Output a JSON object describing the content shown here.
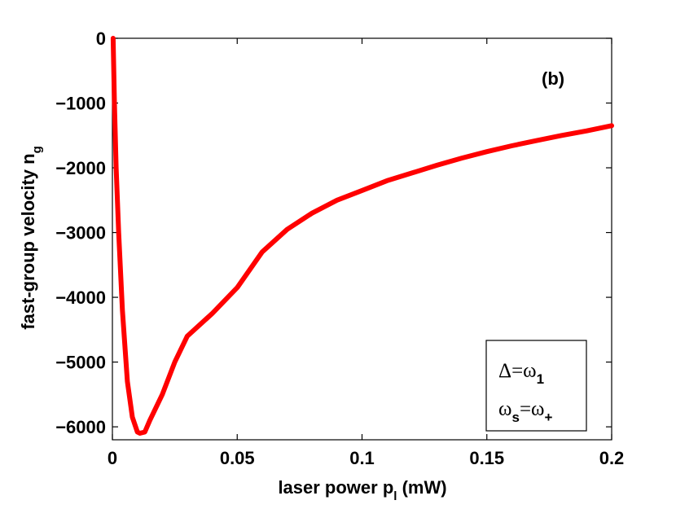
{
  "chart_data": {
    "type": "line",
    "title": "",
    "xlabel": "laser power p",
    "xlabel_sub": "l",
    "xlabel_unit": " (mW)",
    "ylabel": "fast-group velocity n",
    "ylabel_sub": "g",
    "xlim": [
      0,
      0.2
    ],
    "ylim": [
      -6200,
      0
    ],
    "x_ticks": [
      0,
      0.05,
      0.1,
      0.15,
      0.2
    ],
    "x_tick_labels": [
      "0",
      "0.05",
      "0.1",
      "0.15",
      "0.2"
    ],
    "y_ticks": [
      0,
      -1000,
      -2000,
      -3000,
      -4000,
      -5000,
      -6000
    ],
    "y_tick_labels": [
      "0",
      "−1000",
      "−2000",
      "−3000",
      "−4000",
      "−5000",
      "−6000"
    ],
    "grid": false,
    "panel_label": "(b)",
    "series": [
      {
        "color": "#ff0000",
        "x": [
          0.0003,
          0.0008,
          0.0015,
          0.0025,
          0.004,
          0.006,
          0.008,
          0.01,
          0.011,
          0.013,
          0.015,
          0.02,
          0.025,
          0.03,
          0.04,
          0.05,
          0.06,
          0.07,
          0.08,
          0.09,
          0.1,
          0.11,
          0.12,
          0.13,
          0.14,
          0.15,
          0.16,
          0.17,
          0.18,
          0.19,
          0.2
        ],
        "y": [
          0,
          -1000,
          -2000,
          -3000,
          -4200,
          -5300,
          -5850,
          -6080,
          -6100,
          -6080,
          -5900,
          -5500,
          -5000,
          -4600,
          -4250,
          -3850,
          -3300,
          -2950,
          -2700,
          -2500,
          -2350,
          -2200,
          -2080,
          -1960,
          -1850,
          -1750,
          -1660,
          -1580,
          -1500,
          -1430,
          -1350
        ]
      }
    ],
    "legend": {
      "placement": "bottom-right",
      "line1_main": "Δ=ω",
      "line1_sub": "1",
      "line2_a": "ω",
      "line2_a_sub": "s",
      "line2_b": "=ω",
      "line2_b_sub": "+"
    }
  }
}
